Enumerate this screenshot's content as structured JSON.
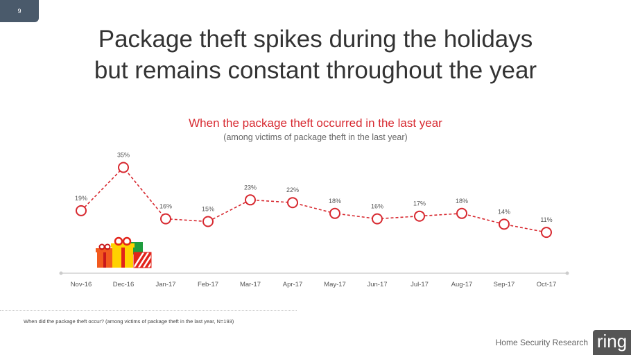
{
  "slide_number": "9",
  "title_line1": "Package theft spikes during the holidays",
  "title_line2": "but remains constant throughout the year",
  "footnote": "When did the package theft occur? (among victims of package theft in the last year, N=193)",
  "brand_text": "Home Security Research",
  "brand_logo": "ring",
  "colors": {
    "accent": "#d7282f",
    "text": "#333333",
    "muted": "#666666"
  },
  "chart_data": {
    "type": "line",
    "title": "When the package theft occurred in the last year",
    "subtitle": "(among victims of package theft in the last year)",
    "categories": [
      "Nov-16",
      "Dec-16",
      "Jan-17",
      "Feb-17",
      "Mar-17",
      "Apr-17",
      "May-17",
      "Jun-17",
      "Jul-17",
      "Aug-17",
      "Sep-17",
      "Oct-17"
    ],
    "values": [
      19,
      35,
      16,
      15,
      23,
      22,
      18,
      16,
      17,
      18,
      14,
      11
    ],
    "value_labels": [
      "19%",
      "35%",
      "16%",
      "15%",
      "23%",
      "22%",
      "18%",
      "16%",
      "17%",
      "18%",
      "14%",
      "11%"
    ],
    "line_style": "dashed",
    "marker": "hollow-circle",
    "grid": false,
    "legend": "none",
    "decoration": "gift-icon"
  }
}
